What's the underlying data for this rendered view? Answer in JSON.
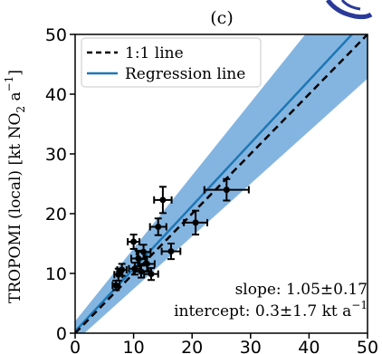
{
  "chart_data": {
    "type": "scatter",
    "panel_label": "(c)",
    "ylabel_main": "TROPOMI (local) [kt NO",
    "ylabel_sub": "2",
    "ylabel_mid": " a",
    "ylabel_sup": "−1",
    "ylabel_end": "]",
    "xlim": [
      0,
      50
    ],
    "ylim": [
      0,
      50
    ],
    "x_ticks": [
      0,
      10,
      20,
      30,
      40,
      50
    ],
    "y_ticks": [
      0,
      10,
      20,
      30,
      40,
      50
    ],
    "x_tick_labels": [
      "0",
      "10",
      "20",
      "30",
      "40",
      "50"
    ],
    "y_tick_labels": [
      "0",
      "10",
      "20",
      "30",
      "40",
      "50"
    ],
    "legend": {
      "position": "top-left",
      "entries": [
        {
          "label": "1:1 line",
          "style": "dashed",
          "color": "#000000"
        },
        {
          "label": "Regression line",
          "style": "solid",
          "color": "#1f77b4"
        }
      ]
    },
    "annotations": {
      "slope": "slope: 1.05±0.17",
      "intercept_main": "intercept: 0.3±1.7 kt a",
      "intercept_sup": "−1"
    },
    "regression": {
      "slope": 1.05,
      "intercept": 0.3,
      "band_slope_low": 0.88,
      "band_slope_high": 1.22,
      "band_intercept_low": -1.4,
      "band_intercept_high": 2.0
    },
    "band_color": "#6fa8dc",
    "line_color": "#1f77b4",
    "points": [
      {
        "x": 7.0,
        "y": 8.0,
        "xerr": 0.6,
        "yerr": 0.8
      },
      {
        "x": 7.4,
        "y": 9.8,
        "xerr": 0.7,
        "yerr": 1.0
      },
      {
        "x": 8.0,
        "y": 10.6,
        "xerr": 0.8,
        "yerr": 1.0
      },
      {
        "x": 10.0,
        "y": 15.3,
        "xerr": 1.0,
        "yerr": 1.2
      },
      {
        "x": 10.2,
        "y": 10.8,
        "xerr": 1.0,
        "yerr": 1.0
      },
      {
        "x": 10.8,
        "y": 12.5,
        "xerr": 1.2,
        "yerr": 1.3
      },
      {
        "x": 11.3,
        "y": 10.3,
        "xerr": 1.3,
        "yerr": 1.0
      },
      {
        "x": 11.7,
        "y": 13.6,
        "xerr": 1.2,
        "yerr": 1.2
      },
      {
        "x": 12.3,
        "y": 11.6,
        "xerr": 1.3,
        "yerr": 1.2
      },
      {
        "x": 13.0,
        "y": 9.9,
        "xerr": 1.2,
        "yerr": 1.0
      },
      {
        "x": 14.2,
        "y": 17.8,
        "xerr": 1.4,
        "yerr": 1.4
      },
      {
        "x": 15.0,
        "y": 22.3,
        "xerr": 1.5,
        "yerr": 2.2
      },
      {
        "x": 16.4,
        "y": 13.7,
        "xerr": 1.6,
        "yerr": 1.3
      },
      {
        "x": 20.6,
        "y": 18.5,
        "xerr": 2.0,
        "yerr": 2.0
      },
      {
        "x": 25.9,
        "y": 24.0,
        "xerr": 3.8,
        "yerr": 1.8
      }
    ]
  }
}
